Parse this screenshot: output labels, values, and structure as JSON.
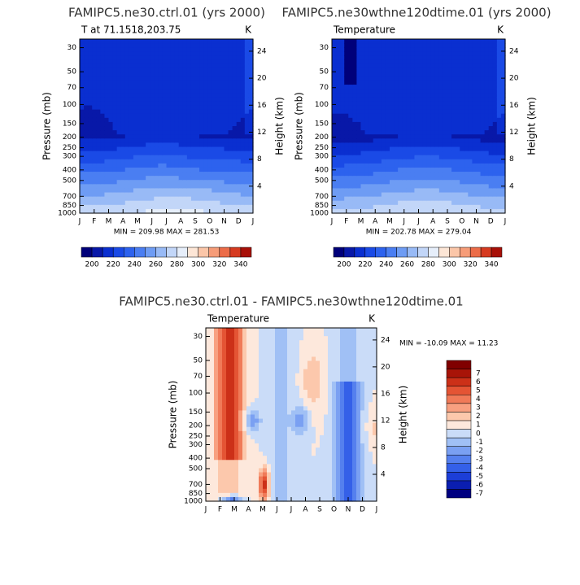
{
  "chart_data": [
    {
      "type": "contour",
      "field": "temperature",
      "title": "FAMIPC5.ne30.ctrl.01 (yrs 2000)",
      "left_label": "T at 71.1518,203.75",
      "right_label": "K",
      "ylabel": "Pressure (mb)",
      "y2label": "Height (km)",
      "categories": [
        "J",
        "F",
        "M",
        "A",
        "M",
        "J",
        "J",
        "A",
        "S",
        "O",
        "N",
        "D",
        "J"
      ],
      "yscale": "log",
      "ylim": [
        1000,
        25
      ],
      "yticks": [
        30,
        50,
        70,
        100,
        150,
        200,
        250,
        300,
        400,
        500,
        700,
        850,
        1000
      ],
      "y2lim": [
        0,
        25.8
      ],
      "y2ticks": [
        4,
        8,
        12,
        16,
        20,
        24
      ],
      "stats": "MIN = 209.98 MAX = 281.53",
      "colorbar": {
        "orientation": "horizontal",
        "lim": [
          190,
          350
        ],
        "ticks": [
          200,
          220,
          240,
          260,
          280,
          300,
          320,
          340
        ],
        "colors": [
          "#00007a",
          "#0818a8",
          "#0a2fd0",
          "#1a4ae6",
          "#2d62ee",
          "#4a7ef2",
          "#6e9cf4",
          "#98baf6",
          "#c2d6f8",
          "#e6eefa",
          "#fde6d6",
          "#fbc6a8",
          "#f69c78",
          "#ec6c48",
          "#d63a20",
          "#a81008"
        ]
      }
    },
    {
      "type": "contour",
      "field": "temperature2",
      "title": "FAMIPC5.ne30wthne120dtime.01 (yrs 2000)",
      "left_label": "Temperature",
      "right_label": "K",
      "ylabel": "Pressure (mb)",
      "y2label": "Height (km)",
      "categories": [
        "J",
        "F",
        "M",
        "A",
        "M",
        "J",
        "J",
        "A",
        "S",
        "O",
        "N",
        "D",
        "J"
      ],
      "yscale": "log",
      "ylim": [
        1000,
        25
      ],
      "yticks": [
        30,
        50,
        70,
        100,
        150,
        200,
        250,
        300,
        400,
        500,
        700,
        850,
        1000
      ],
      "y2lim": [
        0,
        25.8
      ],
      "y2ticks": [
        4,
        8,
        12,
        16,
        20,
        24
      ],
      "stats": "MIN = 202.78 MAX = 279.04",
      "colorbar": {
        "orientation": "horizontal",
        "lim": [
          190,
          350
        ],
        "ticks": [
          200,
          220,
          240,
          260,
          280,
          300,
          320,
          340
        ],
        "colors": [
          "#00007a",
          "#0818a8",
          "#0a2fd0",
          "#1a4ae6",
          "#2d62ee",
          "#4a7ef2",
          "#6e9cf4",
          "#98baf6",
          "#c2d6f8",
          "#e6eefa",
          "#fde6d6",
          "#fbc6a8",
          "#f69c78",
          "#ec6c48",
          "#d63a20",
          "#a81008"
        ]
      }
    },
    {
      "type": "contour",
      "field": "difference",
      "title": "FAMIPC5.ne30.ctrl.01 - FAMIPC5.ne30wthne120dtime.01",
      "left_label": "Temperature",
      "right_label": "K",
      "ylabel": "Pressure (mb)",
      "y2label": "Height (km)",
      "categories": [
        "J",
        "F",
        "M",
        "A",
        "M",
        "J",
        "J",
        "A",
        "S",
        "O",
        "N",
        "D",
        "J"
      ],
      "yscale": "log",
      "ylim": [
        1000,
        25
      ],
      "yticks": [
        30,
        50,
        70,
        100,
        150,
        200,
        250,
        300,
        400,
        500,
        700,
        850,
        1000
      ],
      "y2lim": [
        0,
        25.8
      ],
      "y2ticks": [
        4,
        8,
        12,
        16,
        20,
        24
      ],
      "stats": "MIN = -10.09 MAX = 11.23",
      "colorbar": {
        "orientation": "vertical",
        "lim": [
          -8,
          8
        ],
        "ticks": [
          7,
          6,
          5,
          4,
          3,
          2,
          1,
          0,
          -1,
          -2,
          -3,
          -4,
          -5,
          -6,
          -7
        ],
        "colors": [
          "#000080",
          "#0a1eb0",
          "#1c3ed8",
          "#3460e8",
          "#5580ee",
          "#7aa0f2",
          "#a0c0f5",
          "#cadcf8",
          "#fde8dc",
          "#fcc8ac",
          "#f8a080",
          "#f07a58",
          "#e45434",
          "#cc3018",
          "#a81408",
          "#800000"
        ]
      }
    }
  ]
}
